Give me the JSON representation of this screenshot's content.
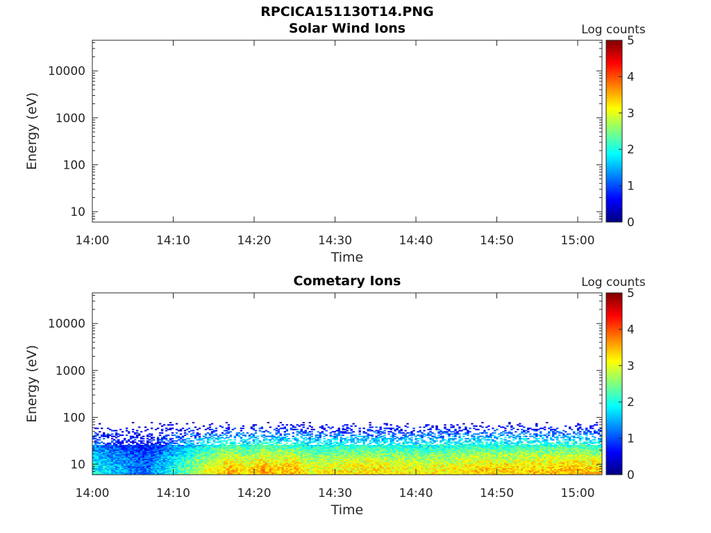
{
  "figure": {
    "title": "RPCICA151130T14.PNG"
  },
  "colors": {
    "colormap": [
      "#00007f",
      "#0000ff",
      "#007fff",
      "#00ffff",
      "#7fff7f",
      "#ffff00",
      "#ff7f00",
      "#ff0000",
      "#7f0000"
    ]
  },
  "chart_data": [
    {
      "type": "heatmap",
      "title": "Solar Wind Ions",
      "xlabel": "Time",
      "ylabel": "Energy (eV)",
      "yscale": "log",
      "ylim": [
        6,
        45000
      ],
      "xlim": [
        "14:00",
        "15:03"
      ],
      "xticks": [
        "14:00",
        "14:10",
        "14:20",
        "14:30",
        "14:40",
        "14:50",
        "15:00"
      ],
      "yticks": [
        10,
        100,
        1000,
        10000
      ],
      "ytick_labels": [
        "10",
        "100",
        "1000",
        "10000"
      ],
      "colorbar": {
        "label": "Log counts",
        "range": [
          0,
          5
        ],
        "ticks": [
          "0",
          "1",
          "2",
          "3",
          "4",
          "5"
        ]
      },
      "data": "empty"
    },
    {
      "type": "heatmap",
      "title": "Cometary Ions",
      "xlabel": "Time",
      "ylabel": "Energy (eV)",
      "yscale": "log",
      "ylim": [
        6,
        45000
      ],
      "xlim": [
        "14:00",
        "15:03"
      ],
      "xticks": [
        "14:00",
        "14:10",
        "14:20",
        "14:30",
        "14:40",
        "14:50",
        "15:00"
      ],
      "yticks": [
        10,
        100,
        1000,
        10000
      ],
      "ytick_labels": [
        "10",
        "100",
        "1000",
        "10000"
      ],
      "colorbar": {
        "label": "Log counts",
        "range": [
          0,
          5
        ],
        "ticks": [
          "0",
          "1",
          "2",
          "3",
          "4",
          "5"
        ]
      },
      "energy_max_eV": 80,
      "profile": {
        "time_min": [
          0,
          3,
          5,
          7,
          10,
          12,
          14,
          17,
          19,
          21,
          23,
          25,
          27,
          30,
          35,
          40,
          45,
          48,
          50,
          55,
          60,
          63
        ],
        "peak_log_counts": [
          2.0,
          1.6,
          1.3,
          1.2,
          2.0,
          2.5,
          3.0,
          3.5,
          3.2,
          3.6,
          3.4,
          3.5,
          3.0,
          3.2,
          3.3,
          3.1,
          3.2,
          3.4,
          3.3,
          3.4,
          3.5,
          3.3
        ]
      }
    }
  ]
}
